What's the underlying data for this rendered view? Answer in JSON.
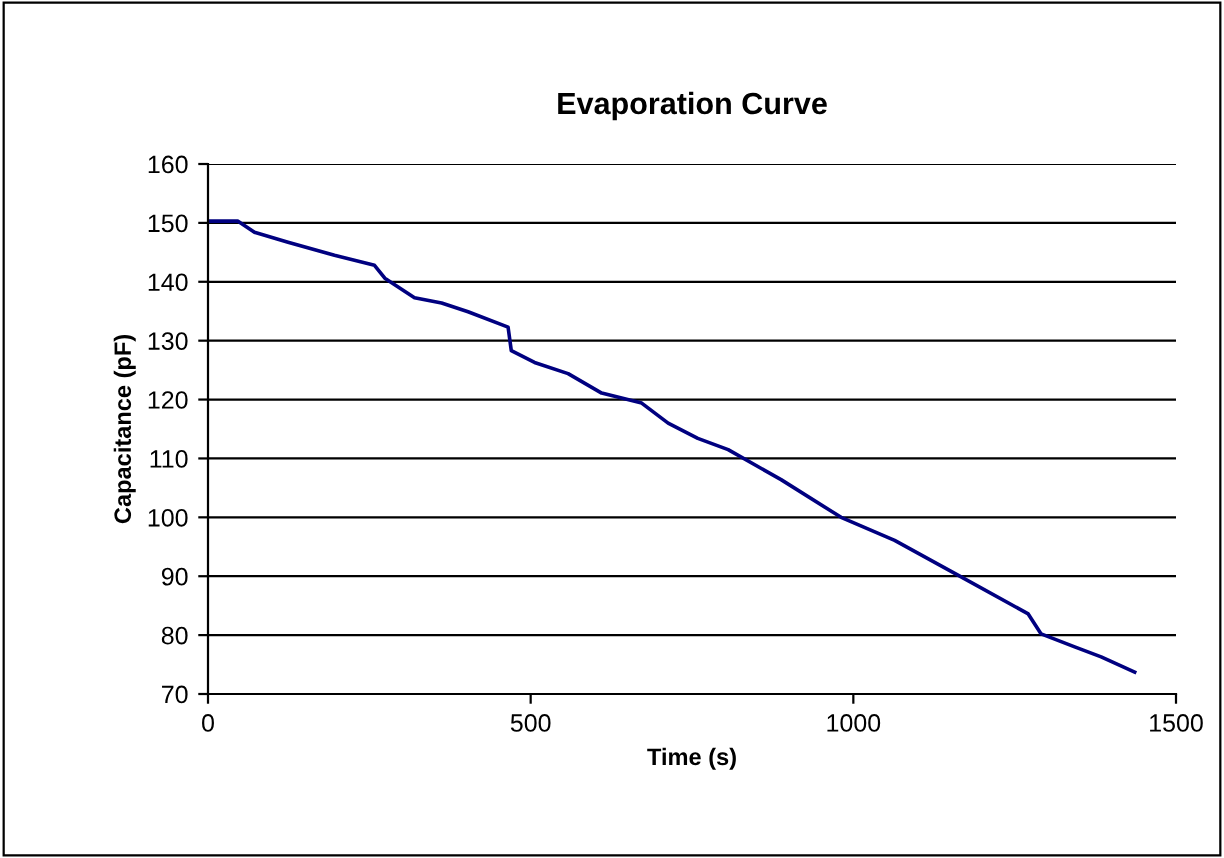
{
  "chart_data": {
    "type": "line",
    "title": "Evaporation Curve",
    "xlabel": "Time (s)",
    "ylabel": "Capacitance (pF)",
    "xlim": [
      0,
      1500
    ],
    "xticks": [
      0,
      500,
      1000,
      1500
    ],
    "ylim": [
      70,
      160
    ],
    "yticks": [
      70,
      80,
      90,
      100,
      110,
      120,
      130,
      140,
      150,
      160
    ],
    "grid": "y",
    "marker": "none",
    "line_style": "solid",
    "series": [
      {
        "color": "#000080",
        "x": [
          0,
          46,
          72,
          124,
          196,
          258,
          274,
          320,
          362,
          403,
          465,
          470,
          506,
          558,
          610,
          672,
          713,
          759,
          806,
          888,
          981,
          1064,
          1167,
          1271,
          1291,
          1343,
          1384,
          1436
        ],
        "values": [
          150.3,
          150.3,
          148.4,
          146.7,
          144.5,
          142.8,
          140.6,
          137.3,
          136.4,
          134.9,
          132.3,
          128.3,
          126.3,
          124.4,
          121.1,
          119.4,
          116.0,
          113.4,
          111.5,
          106.4,
          100.0,
          96.1,
          89.9,
          83.6,
          80.2,
          78.0,
          76.3,
          73.7
        ]
      }
    ]
  }
}
